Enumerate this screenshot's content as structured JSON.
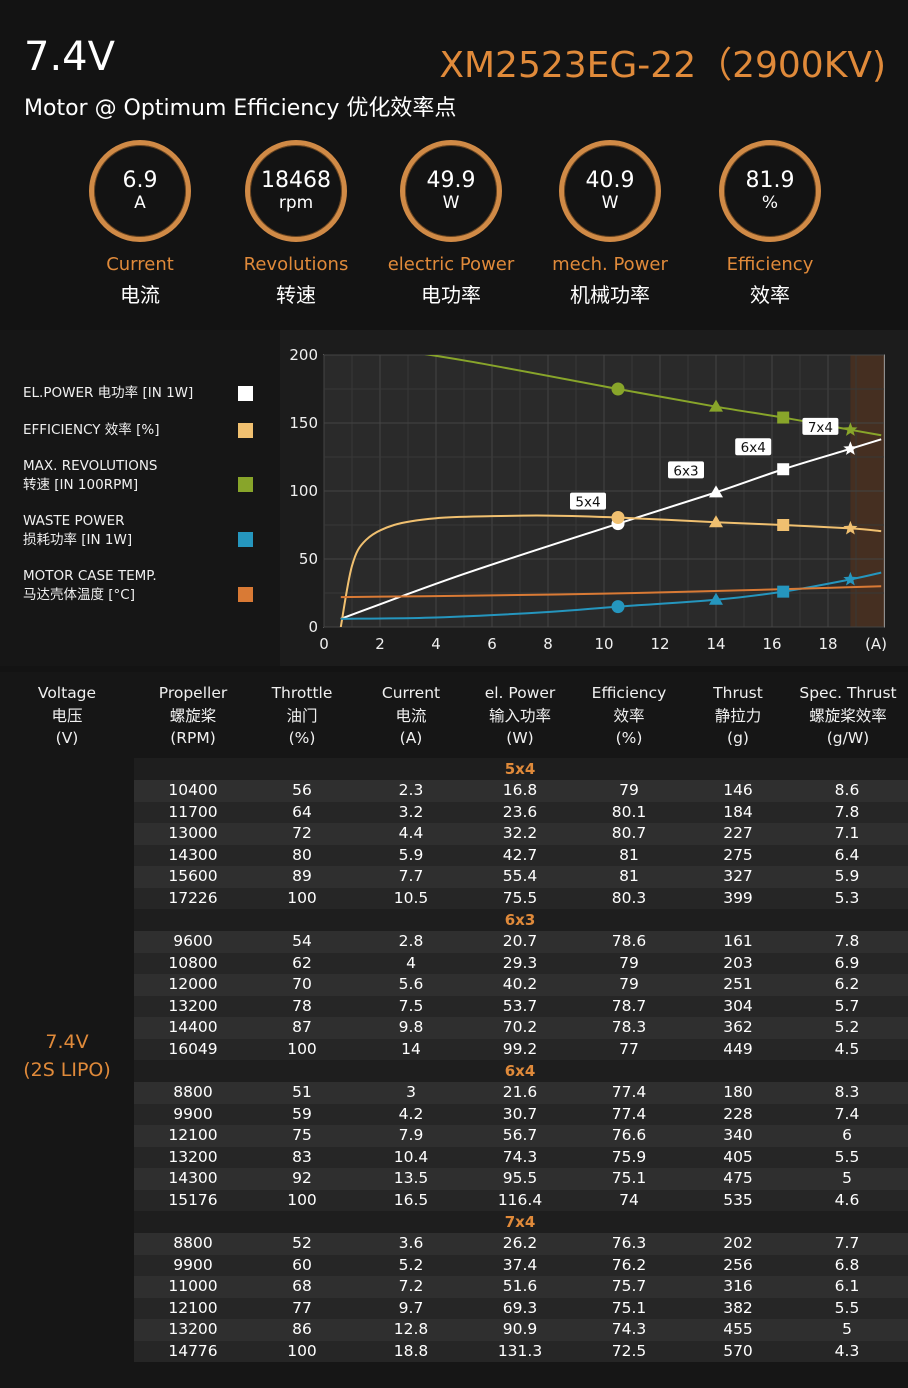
{
  "header": {
    "voltage": "7.4V",
    "model": "XM2523EG-22（2900KV)",
    "subtitle": "Motor @ Optimum Efficiency  优化效率点",
    "accent_color": "#e08a3a",
    "metrics": [
      {
        "value": "6.9",
        "unit": "A",
        "en": "Current",
        "cn": "电流"
      },
      {
        "value": "18468",
        "unit": "rpm",
        "en": "Revolutions",
        "cn": "转速"
      },
      {
        "value": "49.9",
        "unit": "W",
        "en": "electric Power",
        "cn": "电功率"
      },
      {
        "value": "40.9",
        "unit": "W",
        "en": "mech. Power",
        "cn": "机械功率"
      },
      {
        "value": "81.9",
        "unit": "%",
        "en": "Efficiency",
        "cn": "效率"
      }
    ]
  },
  "legend": [
    {
      "line1": "EL.POWER 电功率 [IN 1W]",
      "line2": "",
      "color": "#ffffff"
    },
    {
      "line1": "EFFICIENCY 效率 [%]",
      "line2": "",
      "color": "#f0c070"
    },
    {
      "line1": "MAX. REVOLUTIONS",
      "line2": "转速 [IN 100RPM]",
      "color": "#88a52a"
    },
    {
      "line1": "WASTE POWER",
      "line2": "损耗功率 [IN 1W]",
      "color": "#2596be"
    },
    {
      "line1": "MOTOR CASE TEMP.",
      "line2": "马达壳体温度 [°C]",
      "color": "#d97a35"
    }
  ],
  "chart_data": {
    "type": "line",
    "xlabel": "(A)",
    "xlim": [
      0,
      20
    ],
    "ylim": [
      0,
      200
    ],
    "x_ticks": [
      "0",
      "2",
      "4",
      "6",
      "8",
      "10",
      "12",
      "14",
      "16",
      "18"
    ],
    "y_ticks": [
      "0",
      "50",
      "100",
      "150",
      "200"
    ],
    "grid": true,
    "series": [
      {
        "name": "EL.POWER 电功率 [IN 1W]",
        "color": "#ffffff",
        "points": [
          [
            0.6,
            6
          ],
          [
            5,
            39
          ],
          [
            10.5,
            76
          ],
          [
            14,
            99
          ],
          [
            16.4,
            116
          ],
          [
            18.8,
            131
          ],
          [
            19.9,
            138
          ]
        ]
      },
      {
        "name": "EFFICIENCY 效率 [%]",
        "color": "#f0c070",
        "points": [
          [
            0.6,
            0
          ],
          [
            1.0,
            45
          ],
          [
            1.5,
            64
          ],
          [
            2.5,
            75
          ],
          [
            4,
            80
          ],
          [
            6,
            81.5
          ],
          [
            8,
            81.9
          ],
          [
            10.5,
            80.5
          ],
          [
            14,
            77
          ],
          [
            16.4,
            75
          ],
          [
            18.8,
            72.5
          ],
          [
            19.9,
            70.5
          ]
        ]
      },
      {
        "name": "MAX. REVOLUTIONS 转速 [IN 100RPM]",
        "color": "#88a52a",
        "points": [
          [
            0.6,
            210
          ],
          [
            5,
            196
          ],
          [
            10.5,
            175
          ],
          [
            14,
            162
          ],
          [
            16.4,
            154
          ],
          [
            18.8,
            145
          ],
          [
            19.9,
            141
          ]
        ]
      },
      {
        "name": "WASTE POWER 损耗功率 [IN 1W]",
        "color": "#2596be",
        "points": [
          [
            0.6,
            6
          ],
          [
            4,
            7
          ],
          [
            8,
            11
          ],
          [
            10.5,
            15
          ],
          [
            14,
            20
          ],
          [
            16.4,
            26
          ],
          [
            18.8,
            35
          ],
          [
            19.9,
            40
          ]
        ]
      },
      {
        "name": "MOTOR CASE TEMP. 马达壳体温度 [°C]",
        "color": "#d97a35",
        "points": [
          [
            0.6,
            22
          ],
          [
            5,
            23
          ],
          [
            10,
            24.5
          ],
          [
            15,
            27
          ],
          [
            19.9,
            30
          ]
        ]
      }
    ],
    "markers": [
      {
        "series": 0,
        "x": 10.5,
        "y": 76,
        "shape": "circle"
      },
      {
        "series": 0,
        "x": 14,
        "y": 99,
        "shape": "triangle"
      },
      {
        "series": 0,
        "x": 16.4,
        "y": 116,
        "shape": "square"
      },
      {
        "series": 0,
        "x": 18.8,
        "y": 131,
        "shape": "star"
      },
      {
        "series": 1,
        "x": 10.5,
        "y": 80.5,
        "shape": "circle"
      },
      {
        "series": 1,
        "x": 14,
        "y": 77,
        "shape": "triangle"
      },
      {
        "series": 1,
        "x": 16.4,
        "y": 75,
        "shape": "square"
      },
      {
        "series": 1,
        "x": 18.8,
        "y": 72.5,
        "shape": "star"
      },
      {
        "series": 2,
        "x": 10.5,
        "y": 175,
        "shape": "circle"
      },
      {
        "series": 2,
        "x": 14,
        "y": 162,
        "shape": "triangle"
      },
      {
        "series": 2,
        "x": 16.4,
        "y": 154,
        "shape": "square"
      },
      {
        "series": 2,
        "x": 18.8,
        "y": 145,
        "shape": "star"
      },
      {
        "series": 3,
        "x": 10.5,
        "y": 15,
        "shape": "circle"
      },
      {
        "series": 3,
        "x": 14,
        "y": 20,
        "shape": "triangle"
      },
      {
        "series": 3,
        "x": 16.4,
        "y": 26,
        "shape": "square"
      },
      {
        "series": 3,
        "x": 18.8,
        "y": 35,
        "shape": "star"
      }
    ],
    "annotations": [
      {
        "text": "5x4",
        "x": 10.5,
        "y": 76
      },
      {
        "text": "6x3",
        "x": 14,
        "y": 99
      },
      {
        "text": "6x4",
        "x": 16.4,
        "y": 116
      },
      {
        "text": "7x4",
        "x": 18.8,
        "y": 131
      }
    ],
    "shaded_region": {
      "x_from": 18.8,
      "x_to": 20,
      "color": "#4a3020"
    }
  },
  "table": {
    "headers": [
      {
        "en": "Voltage",
        "cn": "电压",
        "unit": "(V)"
      },
      {
        "en": "Propeller",
        "cn": "螺旋桨",
        "unit": "(RPM)"
      },
      {
        "en": "Throttle",
        "cn": "油门",
        "unit": "(%)"
      },
      {
        "en": "Current",
        "cn": "电流",
        "unit": "(A)"
      },
      {
        "en": "el. Power",
        "cn": "输入功率",
        "unit": "(W)"
      },
      {
        "en": "Efficiency",
        "cn": "效率",
        "unit": "(%)"
      },
      {
        "en": "Thrust",
        "cn": "静拉力",
        "unit": "(g)"
      },
      {
        "en": "Spec. Thrust",
        "cn": "螺旋桨效率",
        "unit": "(g/W)"
      }
    ],
    "voltage_line1": "7.4V",
    "voltage_line2": "(2S LIPO)",
    "groups": [
      {
        "prop": "5x4",
        "rows": [
          [
            "10400",
            "56",
            "2.3",
            "16.8",
            "79",
            "146",
            "8.6"
          ],
          [
            "11700",
            "64",
            "3.2",
            "23.6",
            "80.1",
            "184",
            "7.8"
          ],
          [
            "13000",
            "72",
            "4.4",
            "32.2",
            "80.7",
            "227",
            "7.1"
          ],
          [
            "14300",
            "80",
            "5.9",
            "42.7",
            "81",
            "275",
            "6.4"
          ],
          [
            "15600",
            "89",
            "7.7",
            "55.4",
            "81",
            "327",
            "5.9"
          ],
          [
            "17226",
            "100",
            "10.5",
            "75.5",
            "80.3",
            "399",
            "5.3"
          ]
        ]
      },
      {
        "prop": "6x3",
        "rows": [
          [
            "9600",
            "54",
            "2.8",
            "20.7",
            "78.6",
            "161",
            "7.8"
          ],
          [
            "10800",
            "62",
            "4",
            "29.3",
            "79",
            "203",
            "6.9"
          ],
          [
            "12000",
            "70",
            "5.6",
            "40.2",
            "79",
            "251",
            "6.2"
          ],
          [
            "13200",
            "78",
            "7.5",
            "53.7",
            "78.7",
            "304",
            "5.7"
          ],
          [
            "14400",
            "87",
            "9.8",
            "70.2",
            "78.3",
            "362",
            "5.2"
          ],
          [
            "16049",
            "100",
            "14",
            "99.2",
            "77",
            "449",
            "4.5"
          ]
        ]
      },
      {
        "prop": "6x4",
        "rows": [
          [
            "8800",
            "51",
            "3",
            "21.6",
            "77.4",
            "180",
            "8.3"
          ],
          [
            "9900",
            "59",
            "4.2",
            "30.7",
            "77.4",
            "228",
            "7.4"
          ],
          [
            "12100",
            "75",
            "7.9",
            "56.7",
            "76.6",
            "340",
            "6"
          ],
          [
            "13200",
            "83",
            "10.4",
            "74.3",
            "75.9",
            "405",
            "5.5"
          ],
          [
            "14300",
            "92",
            "13.5",
            "95.5",
            "75.1",
            "475",
            "5"
          ],
          [
            "15176",
            "100",
            "16.5",
            "116.4",
            "74",
            "535",
            "4.6"
          ]
        ]
      },
      {
        "prop": "7x4",
        "rows": [
          [
            "8800",
            "52",
            "3.6",
            "26.2",
            "76.3",
            "202",
            "7.7"
          ],
          [
            "9900",
            "60",
            "5.2",
            "37.4",
            "76.2",
            "256",
            "6.8"
          ],
          [
            "11000",
            "68",
            "7.2",
            "51.6",
            "75.7",
            "316",
            "6.1"
          ],
          [
            "12100",
            "77",
            "9.7",
            "69.3",
            "75.1",
            "382",
            "5.5"
          ],
          [
            "13200",
            "86",
            "12.8",
            "90.9",
            "74.3",
            "455",
            "5"
          ],
          [
            "14776",
            "100",
            "18.8",
            "131.3",
            "72.5",
            "570",
            "4.3"
          ]
        ]
      }
    ]
  }
}
